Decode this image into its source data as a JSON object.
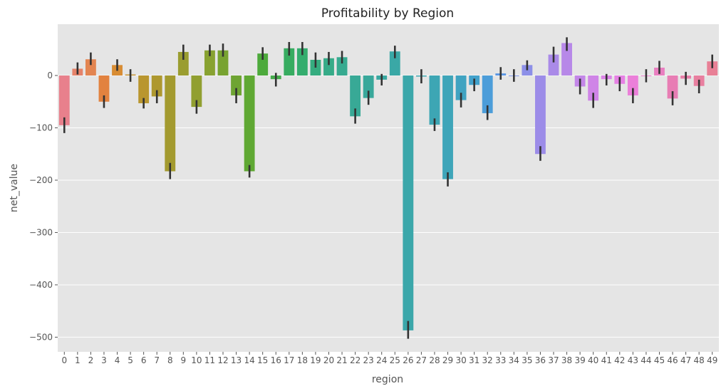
{
  "chart_data": {
    "type": "bar",
    "title": "Profitability by Region",
    "xlabel": "region",
    "ylabel": "net_value",
    "ylim": [
      -528,
      98
    ],
    "yticks": [
      -500,
      -400,
      -300,
      -200,
      -100,
      0
    ],
    "ytick_labels": [
      "−500",
      "−400",
      "−300",
      "−200",
      "−100",
      "0"
    ],
    "grid": true,
    "background": "#E5E5E5",
    "grid_color": "#FFFFFF",
    "error_bar_color": "#333333",
    "categories": [
      "0",
      "1",
      "2",
      "3",
      "4",
      "5",
      "6",
      "7",
      "8",
      "9",
      "10",
      "11",
      "12",
      "13",
      "14",
      "15",
      "16",
      "17",
      "18",
      "19",
      "20",
      "21",
      "22",
      "23",
      "24",
      "25",
      "26",
      "27",
      "28",
      "29",
      "30",
      "31",
      "32",
      "33",
      "34",
      "35",
      "36",
      "37",
      "38",
      "39",
      "40",
      "41",
      "42",
      "43",
      "44",
      "45",
      "46",
      "47",
      "48",
      "49"
    ],
    "values": [
      -95,
      13,
      31,
      -50,
      20,
      2,
      -53,
      -40,
      -183,
      45,
      -60,
      48,
      48,
      -38,
      -183,
      42,
      -7,
      52,
      52,
      30,
      33,
      35,
      -78,
      -43,
      -8,
      46,
      -487,
      -2,
      -94,
      -198,
      -47,
      -18,
      -72,
      4,
      0,
      20,
      -150,
      40,
      62,
      -21,
      -48,
      -7,
      -16,
      -38,
      0,
      15,
      -44,
      -6,
      -20,
      27
    ],
    "errors": [
      [
        -110,
        -80
      ],
      [
        2,
        25
      ],
      [
        20,
        44
      ],
      [
        -62,
        -38
      ],
      [
        9,
        31
      ],
      [
        -12,
        12
      ],
      [
        -63,
        -43
      ],
      [
        -53,
        -28
      ],
      [
        -198,
        -167
      ],
      [
        30,
        59
      ],
      [
        -73,
        -47
      ],
      [
        37,
        59
      ],
      [
        36,
        61
      ],
      [
        -53,
        -24
      ],
      [
        -195,
        -171
      ],
      [
        30,
        54
      ],
      [
        -21,
        5
      ],
      [
        38,
        64
      ],
      [
        39,
        64
      ],
      [
        15,
        44
      ],
      [
        20,
        45
      ],
      [
        23,
        47
      ],
      [
        -92,
        -63
      ],
      [
        -56,
        -29
      ],
      [
        -19,
        3
      ],
      [
        33,
        57
      ],
      [
        -503,
        -469
      ],
      [
        -15,
        12
      ],
      [
        -106,
        -82
      ],
      [
        -212,
        -185
      ],
      [
        -61,
        -33
      ],
      [
        -30,
        -6
      ],
      [
        -85,
        -57
      ],
      [
        -8,
        16
      ],
      [
        -12,
        12
      ],
      [
        10,
        29
      ],
      [
        -163,
        -135
      ],
      [
        25,
        55
      ],
      [
        47,
        73
      ],
      [
        -36,
        -6
      ],
      [
        -62,
        -33
      ],
      [
        -19,
        3
      ],
      [
        -30,
        -3
      ],
      [
        -53,
        -24
      ],
      [
        -13,
        12
      ],
      [
        3,
        28
      ],
      [
        -57,
        -30
      ],
      [
        -18,
        7
      ],
      [
        -34,
        -8
      ],
      [
        14,
        40
      ]
    ],
    "colors": [
      "#E8808C",
      "#E5836A",
      "#E38551",
      "#E2823F",
      "#D88C33",
      "#C8942F",
      "#B9962F",
      "#AE982F",
      "#A39A2F",
      "#9A9D30",
      "#919F30",
      "#88A231",
      "#78A331",
      "#6EA432",
      "#5FA833",
      "#4DAA3C",
      "#45AB4B",
      "#37AC60",
      "#34AD6E",
      "#35AC7F",
      "#36AB88",
      "#37AA90",
      "#38A996",
      "#39A89B",
      "#39A8A1",
      "#3AA8A6",
      "#3BA7AA",
      "#3CA7AF",
      "#3DA6B4",
      "#3EA5B9",
      "#40A3C1",
      "#42A1CB",
      "#4C9DD9",
      "#5B97E4",
      "#7B91E7",
      "#8C8FE8",
      "#9C8CE8",
      "#AA8AE8",
      "#B788E8",
      "#C386E8",
      "#CF84E7",
      "#DB83E6",
      "#E681E4",
      "#EB7FD9",
      "#EA7FCC",
      "#E97EC0",
      "#E87DB4",
      "#E87EA8",
      "#E87F9F",
      "#E88096"
    ]
  }
}
